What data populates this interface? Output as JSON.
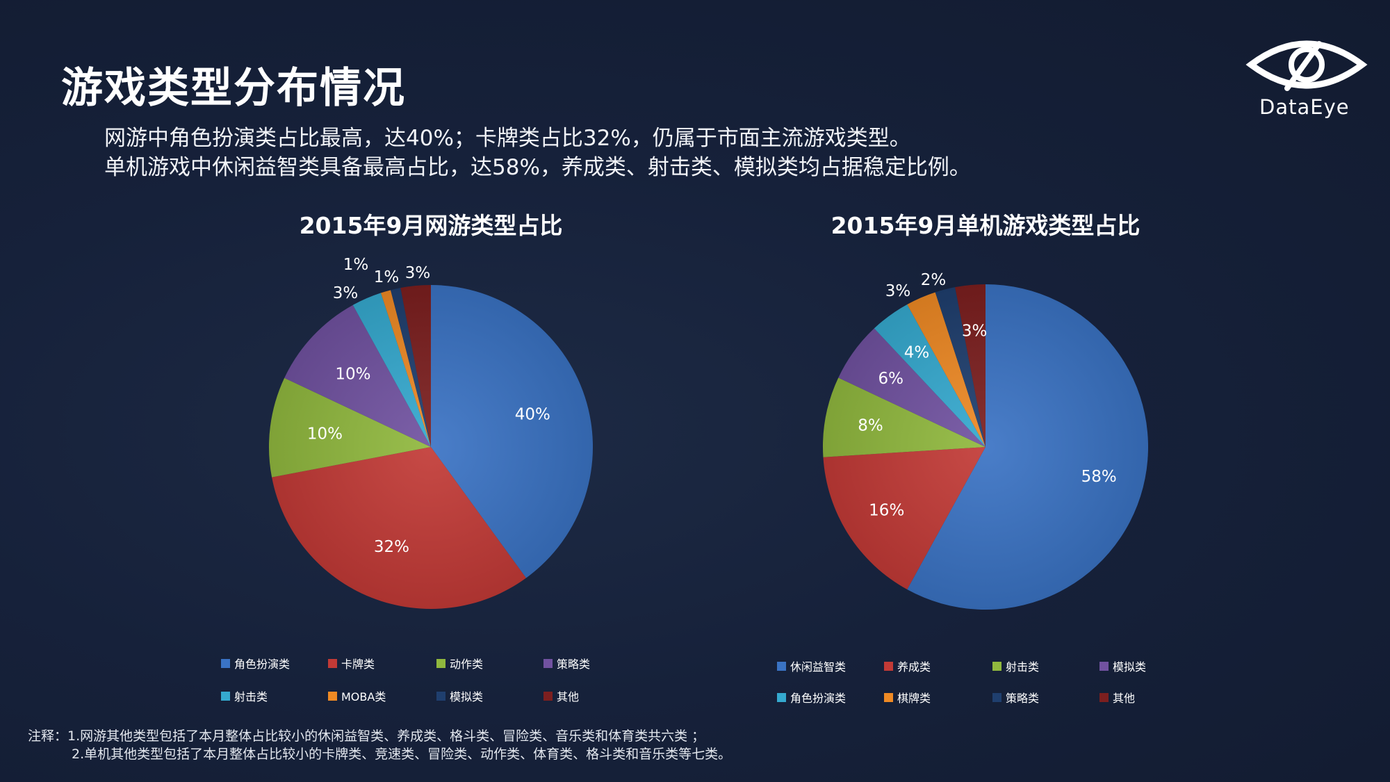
{
  "page": {
    "title": "游戏类型分布情况",
    "description": [
      "网游中角色扮演类占比最高，达40%；卡牌类占比32%，仍属于市面主流游戏类型。",
      "单机游戏中休闲益智类具备最高占比，达58%，养成类、射击类、模拟类均占据稳定比例。"
    ],
    "logo_text": "DataEye",
    "notes": [
      "注释：1.网游其他类型包括了本月整体占比较小的休闲益智类、养成类、格斗类、冒险类、音乐类和体育类共六类 ；",
      "2.单机其他类型包括了本月整体占比较小的卡牌类、竞速类、冒险类、动作类、体育类、格斗类和音乐类等七类。"
    ]
  },
  "colors": {
    "blue": "#3a73c4",
    "red": "#c23a36",
    "green": "#90b83e",
    "purple": "#7152a0",
    "cyan": "#35a9cf",
    "orange": "#ef8a24",
    "navy": "#1f3f6e",
    "maroon": "#7c1f1f"
  },
  "chart_data": [
    {
      "type": "pie",
      "title": "2015年9月网游类型占比",
      "categories": [
        "角色扮演类",
        "卡牌类",
        "动作类",
        "策略类",
        "射击类",
        "MOBA类",
        "模拟类",
        "其他"
      ],
      "values": [
        40,
        32,
        10,
        10,
        3,
        1,
        1,
        3
      ],
      "labels": [
        "40%",
        "32%",
        "10%",
        "10%",
        "3%",
        "1%",
        "1%",
        "3%"
      ],
      "colors": [
        "#3a73c4",
        "#c23a36",
        "#90b83e",
        "#7152a0",
        "#35a9cf",
        "#ef8a24",
        "#1f3f6e",
        "#7c1f1f"
      ],
      "legend": "bottom"
    },
    {
      "type": "pie",
      "title": "2015年9月单机游戏类型占比",
      "categories": [
        "休闲益智类",
        "养成类",
        "射击类",
        "模拟类",
        "角色扮演类",
        "棋牌类",
        "策略类",
        "其他"
      ],
      "values": [
        58,
        16,
        8,
        6,
        4,
        3,
        2,
        3
      ],
      "labels": [
        "58%",
        "16%",
        "8%",
        "6%",
        "4%",
        "3%",
        "2%",
        "3%"
      ],
      "colors": [
        "#3a73c4",
        "#c23a36",
        "#90b83e",
        "#7152a0",
        "#35a9cf",
        "#ef8a24",
        "#1f3f6e",
        "#7c1f1f"
      ],
      "legend": "bottom"
    }
  ]
}
